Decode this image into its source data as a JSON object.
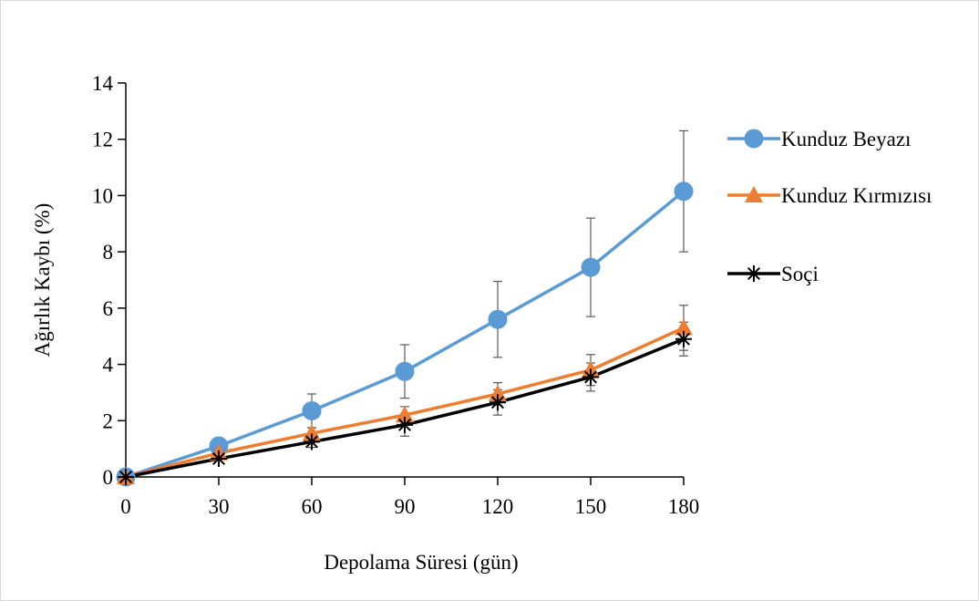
{
  "chart_data": {
    "type": "line",
    "xlabel": "Depolama Süresi (gün)",
    "ylabel": "Ağırlık Kaybı (%)",
    "x": [
      0,
      30,
      60,
      90,
      120,
      150,
      180
    ],
    "xticks": [
      "0",
      "30",
      "60",
      "90",
      "120",
      "150",
      "180"
    ],
    "yticks": [
      "0",
      "2",
      "4",
      "6",
      "8",
      "10",
      "12",
      "14"
    ],
    "xlim": [
      0,
      180
    ],
    "ylim": [
      0,
      14
    ],
    "grid": false,
    "legend_position": "right",
    "series": [
      {
        "name": "Kunduz Beyazı",
        "marker": "circle",
        "color": "#5b9bd5",
        "values": [
          0,
          1.1,
          2.35,
          3.75,
          5.6,
          7.45,
          10.15
        ],
        "error": [
          0,
          0,
          0.6,
          0.95,
          1.35,
          1.75,
          2.15
        ]
      },
      {
        "name": "Kunduz Kırmızısı",
        "marker": "triangle",
        "color": "#ed7d31",
        "values": [
          0,
          0.85,
          1.55,
          2.2,
          2.95,
          3.8,
          5.3
        ],
        "error": [
          0,
          0,
          0.2,
          0.3,
          0.4,
          0.55,
          0.8
        ]
      },
      {
        "name": "Soçi",
        "marker": "asterisk",
        "color": "#000000",
        "values": [
          0,
          0.65,
          1.25,
          1.85,
          2.65,
          3.55,
          4.9
        ],
        "error": [
          0,
          0,
          0.2,
          0.4,
          0.45,
          0.5,
          0.6
        ]
      }
    ]
  }
}
